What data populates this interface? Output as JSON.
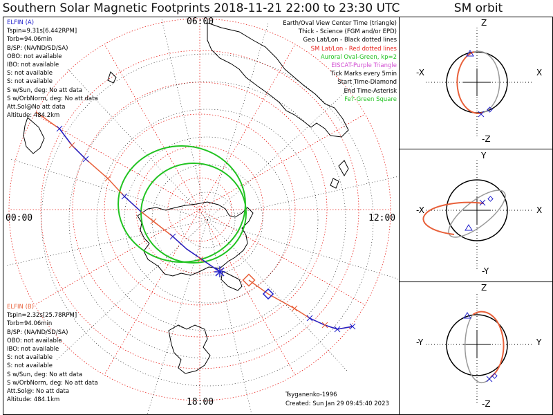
{
  "title": "Southern Solar Magnetic Footprints 2018-11-21 22:00 to 23:30 UTC",
  "orbit_title": "SM orbit",
  "hour_labels": {
    "top": "06:00",
    "left": "00:00",
    "right": "12:00",
    "bottom": "18:00"
  },
  "elfin_a": {
    "name": "ELFIN (A)",
    "lines": [
      "Tspin=9.31s[6.442RPM]",
      "Torb=94.06min",
      "B/SP: (NA/ND/SD/SA)",
      "OBO: not available",
      "IBO: not available",
      "S: not available",
      "S: not available",
      "S w/Sun, deg: No att data",
      "S w/OrbNorm, deg: No att data",
      "Att.Sol@No att data",
      "Altitude: 484.2km"
    ]
  },
  "elfin_b": {
    "name": "ELFIN (B)",
    "lines": [
      "Tspin=2.32s[25.78RPM]",
      "Torb=94.06min",
      "B/SP: (NA/ND/SD/SA)",
      "OBO: not available",
      "IBO: not available",
      "S: not available",
      "S: not available",
      "S w/Sun, deg: No att data",
      "S w/OrbNorm, deg: No att data",
      "Att.Sol@: No att data",
      "Altitude: 484.1km"
    ]
  },
  "legend": [
    {
      "text": "Earth/Oval View Center Time (triangle)",
      "color": "#000000"
    },
    {
      "text": "Thick - Science (FGM and/or EPD)",
      "color": "#000000"
    },
    {
      "text": "Geo Lat/Lon - Black dotted lines",
      "color": "#000000"
    },
    {
      "text": "SM Lat/Lon - Red dotted lines",
      "color": "#e8201a"
    },
    {
      "text": "Auroral Oval-Green, kp=2",
      "color": "#22c322"
    },
    {
      "text": "EISCAT-Purple Triangle",
      "color": "#d24dd2"
    },
    {
      "text": "Tick Marks every 5min",
      "color": "#000000"
    },
    {
      "text": "Start Time-Diamond",
      "color": "#000000"
    },
    {
      "text": "End Time-Asterisk",
      "color": "#000000"
    },
    {
      "text": "Fe?-Green Square",
      "color": "#22c322"
    }
  ],
  "footer": {
    "model": "Tsyganenko-1996",
    "created": "Created: Sun Jan 29 09:45:40 2023"
  },
  "orbit_panels": [
    {
      "top": "Z",
      "bottom": "-Z",
      "left": "-X",
      "right": "X"
    },
    {
      "top": "Y",
      "bottom": "-Y",
      "left": "-X",
      "right": "X"
    },
    {
      "top": "Z",
      "bottom": "-Z",
      "left": "-Y",
      "right": "Y"
    }
  ],
  "colors": {
    "elfin_a": "#2222cc",
    "elfin_b": "#e8603a",
    "oval": "#22c322",
    "sm_grid": "#e8201a",
    "eiscat": "#d24dd2"
  }
}
